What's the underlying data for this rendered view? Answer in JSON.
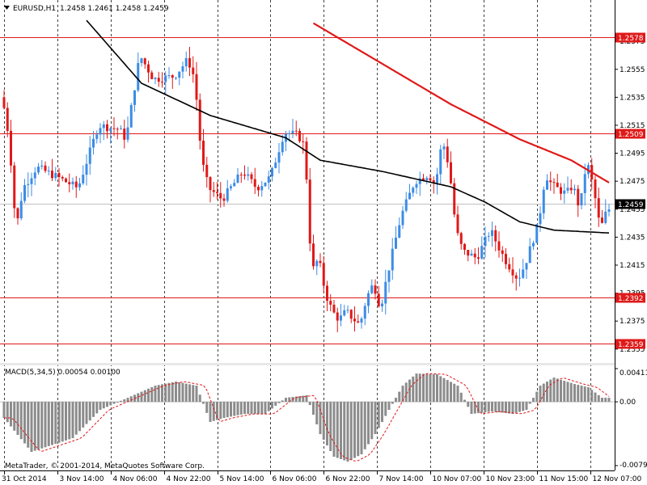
{
  "header": {
    "symbol_text": "EURUSD,H1",
    "ohlc_text": "1.2458 1.2461 1.2458 1.2459",
    "macd_text": "MACD(5,34,5) 0.00054 0.00100",
    "copyright": "MetaTrader, © 2001-2014, MetaQuotes Software Corp."
  },
  "colors": {
    "bull": "#3c8ce6",
    "bear": "#e01919",
    "ma_slow": "#e01919",
    "ma_fast": "#000000",
    "level_line": "#e01919",
    "hist": "#8c8c8c",
    "signal": "#e01919",
    "grid": "#000000"
  },
  "chart_data": [
    {
      "type": "candlestick",
      "symbol": "EURUSD",
      "timeframe": "H1",
      "ylim": [
        1.2352,
        1.2593
      ],
      "y_ticks": [
        "1.2575",
        "1.2555",
        "1.2535",
        "1.2515",
        "1.2495",
        "1.2475",
        "1.2455",
        "1.2435",
        "1.2415",
        "1.2395",
        "1.2375",
        "1.2355"
      ],
      "x_ticks": [
        "31 Oct 2014",
        "3 Nov 14:00",
        "4 Nov 06:00",
        "4 Nov 22:00",
        "5 Nov 14:00",
        "6 Nov 06:00",
        "6 Nov 22:00",
        "7 Nov 14:00",
        "10 Nov 07:00",
        "10 Nov 23:00",
        "11 Nov 15:00",
        "12 Nov 07:00"
      ],
      "x_tick_slots": [
        0,
        15.5,
        31,
        46.5,
        62,
        77.5,
        93,
        108.5,
        124,
        139.5,
        155,
        170.5
      ],
      "price_levels": [
        {
          "label": "1.2578",
          "value": 1.2578
        },
        {
          "label": "1.2509",
          "value": 1.2509
        },
        {
          "label": "1.2392",
          "value": 1.2392
        },
        {
          "label": "1.2359",
          "value": 1.2359
        }
      ],
      "current_price": {
        "label": "1.2459",
        "value": 1.2459
      },
      "anchors": [
        [
          0,
          1.2535
        ],
        [
          2,
          1.2505
        ],
        [
          4,
          1.244
        ],
        [
          6,
          1.247
        ],
        [
          10,
          1.2485
        ],
        [
          16,
          1.2478
        ],
        [
          22,
          1.247
        ],
        [
          28,
          1.2515
        ],
        [
          34,
          1.2512
        ],
        [
          36,
          1.2505
        ],
        [
          40,
          1.2565
        ],
        [
          44,
          1.2548
        ],
        [
          50,
          1.255
        ],
        [
          54,
          1.2562
        ],
        [
          56,
          1.2548
        ],
        [
          58,
          1.249
        ],
        [
          60,
          1.247
        ],
        [
          64,
          1.2462
        ],
        [
          70,
          1.2482
        ],
        [
          74,
          1.247
        ],
        [
          78,
          1.2478
        ],
        [
          82,
          1.251
        ],
        [
          86,
          1.2508
        ],
        [
          88,
          1.25
        ],
        [
          90,
          1.241
        ],
        [
          92,
          1.242
        ],
        [
          94,
          1.2395
        ],
        [
          96,
          1.2382
        ],
        [
          98,
          1.2376
        ],
        [
          100,
          1.2382
        ],
        [
          104,
          1.2372
        ],
        [
          106,
          1.2392
        ],
        [
          108,
          1.2402
        ],
        [
          110,
          1.2384
        ],
        [
          112,
          1.2408
        ],
        [
          116,
          1.245
        ],
        [
          120,
          1.2475
        ],
        [
          124,
          1.248
        ],
        [
          126,
          1.2472
        ],
        [
          128,
          1.2505
        ],
        [
          130,
          1.2485
        ],
        [
          132,
          1.244
        ],
        [
          134,
          1.2425
        ],
        [
          138,
          1.242
        ],
        [
          142,
          1.244
        ],
        [
          146,
          1.242
        ],
        [
          150,
          1.2405
        ],
        [
          152,
          1.2415
        ],
        [
          156,
          1.2445
        ],
        [
          158,
          1.248
        ],
        [
          160,
          1.2472
        ],
        [
          164,
          1.2466
        ],
        [
          166,
          1.2472
        ],
        [
          168,
          1.2455
        ],
        [
          170,
          1.249
        ],
        [
          172,
          1.247
        ],
        [
          174,
          1.244
        ],
        [
          175,
          1.2448
        ],
        [
          176,
          1.2455
        ]
      ],
      "ma_slow": [
        [
          90,
          1.2588
        ],
        [
          130,
          1.253
        ],
        [
          150,
          1.2505
        ],
        [
          165,
          1.249
        ],
        [
          176,
          1.2474
        ]
      ],
      "ma_fast": [
        [
          24,
          1.259
        ],
        [
          40,
          1.2545
        ],
        [
          60,
          1.2522
        ],
        [
          82,
          1.2506
        ],
        [
          92,
          1.249
        ],
        [
          110,
          1.2482
        ],
        [
          130,
          1.2471
        ],
        [
          140,
          1.246
        ],
        [
          150,
          1.2446
        ],
        [
          160,
          1.244
        ],
        [
          176,
          1.2438
        ]
      ]
    },
    {
      "type": "histogram",
      "indicator": "MACD(5,34,5)",
      "main_value": 0.00054,
      "signal_value": 0.001,
      "ylim": [
        -0.0079,
        0.00411
      ],
      "y_ticks": [
        "0.00411",
        "0.00",
        "-0.0079"
      ],
      "anchors": [
        [
          0,
          -0.002
        ],
        [
          8,
          -0.0062
        ],
        [
          20,
          -0.0045
        ],
        [
          28,
          -0.001
        ],
        [
          36,
          0.0005
        ],
        [
          44,
          0.002
        ],
        [
          50,
          0.0025
        ],
        [
          56,
          0.002
        ],
        [
          60,
          -0.0025
        ],
        [
          64,
          -0.002
        ],
        [
          70,
          -0.0015
        ],
        [
          76,
          -0.0015
        ],
        [
          82,
          0.0005
        ],
        [
          88,
          0.0008
        ],
        [
          92,
          -0.004
        ],
        [
          96,
          -0.0068
        ],
        [
          100,
          -0.0074
        ],
        [
          104,
          -0.0065
        ],
        [
          108,
          -0.004
        ],
        [
          112,
          -0.001
        ],
        [
          116,
          0.002
        ],
        [
          120,
          0.0035
        ],
        [
          126,
          0.0034
        ],
        [
          132,
          0.002
        ],
        [
          136,
          -0.0015
        ],
        [
          142,
          -0.0012
        ],
        [
          148,
          -0.0015
        ],
        [
          152,
          -0.001
        ],
        [
          156,
          0.002
        ],
        [
          160,
          0.003
        ],
        [
          166,
          0.0022
        ],
        [
          170,
          0.0018
        ],
        [
          174,
          0.0005
        ],
        [
          176,
          0.0005
        ]
      ]
    }
  ]
}
